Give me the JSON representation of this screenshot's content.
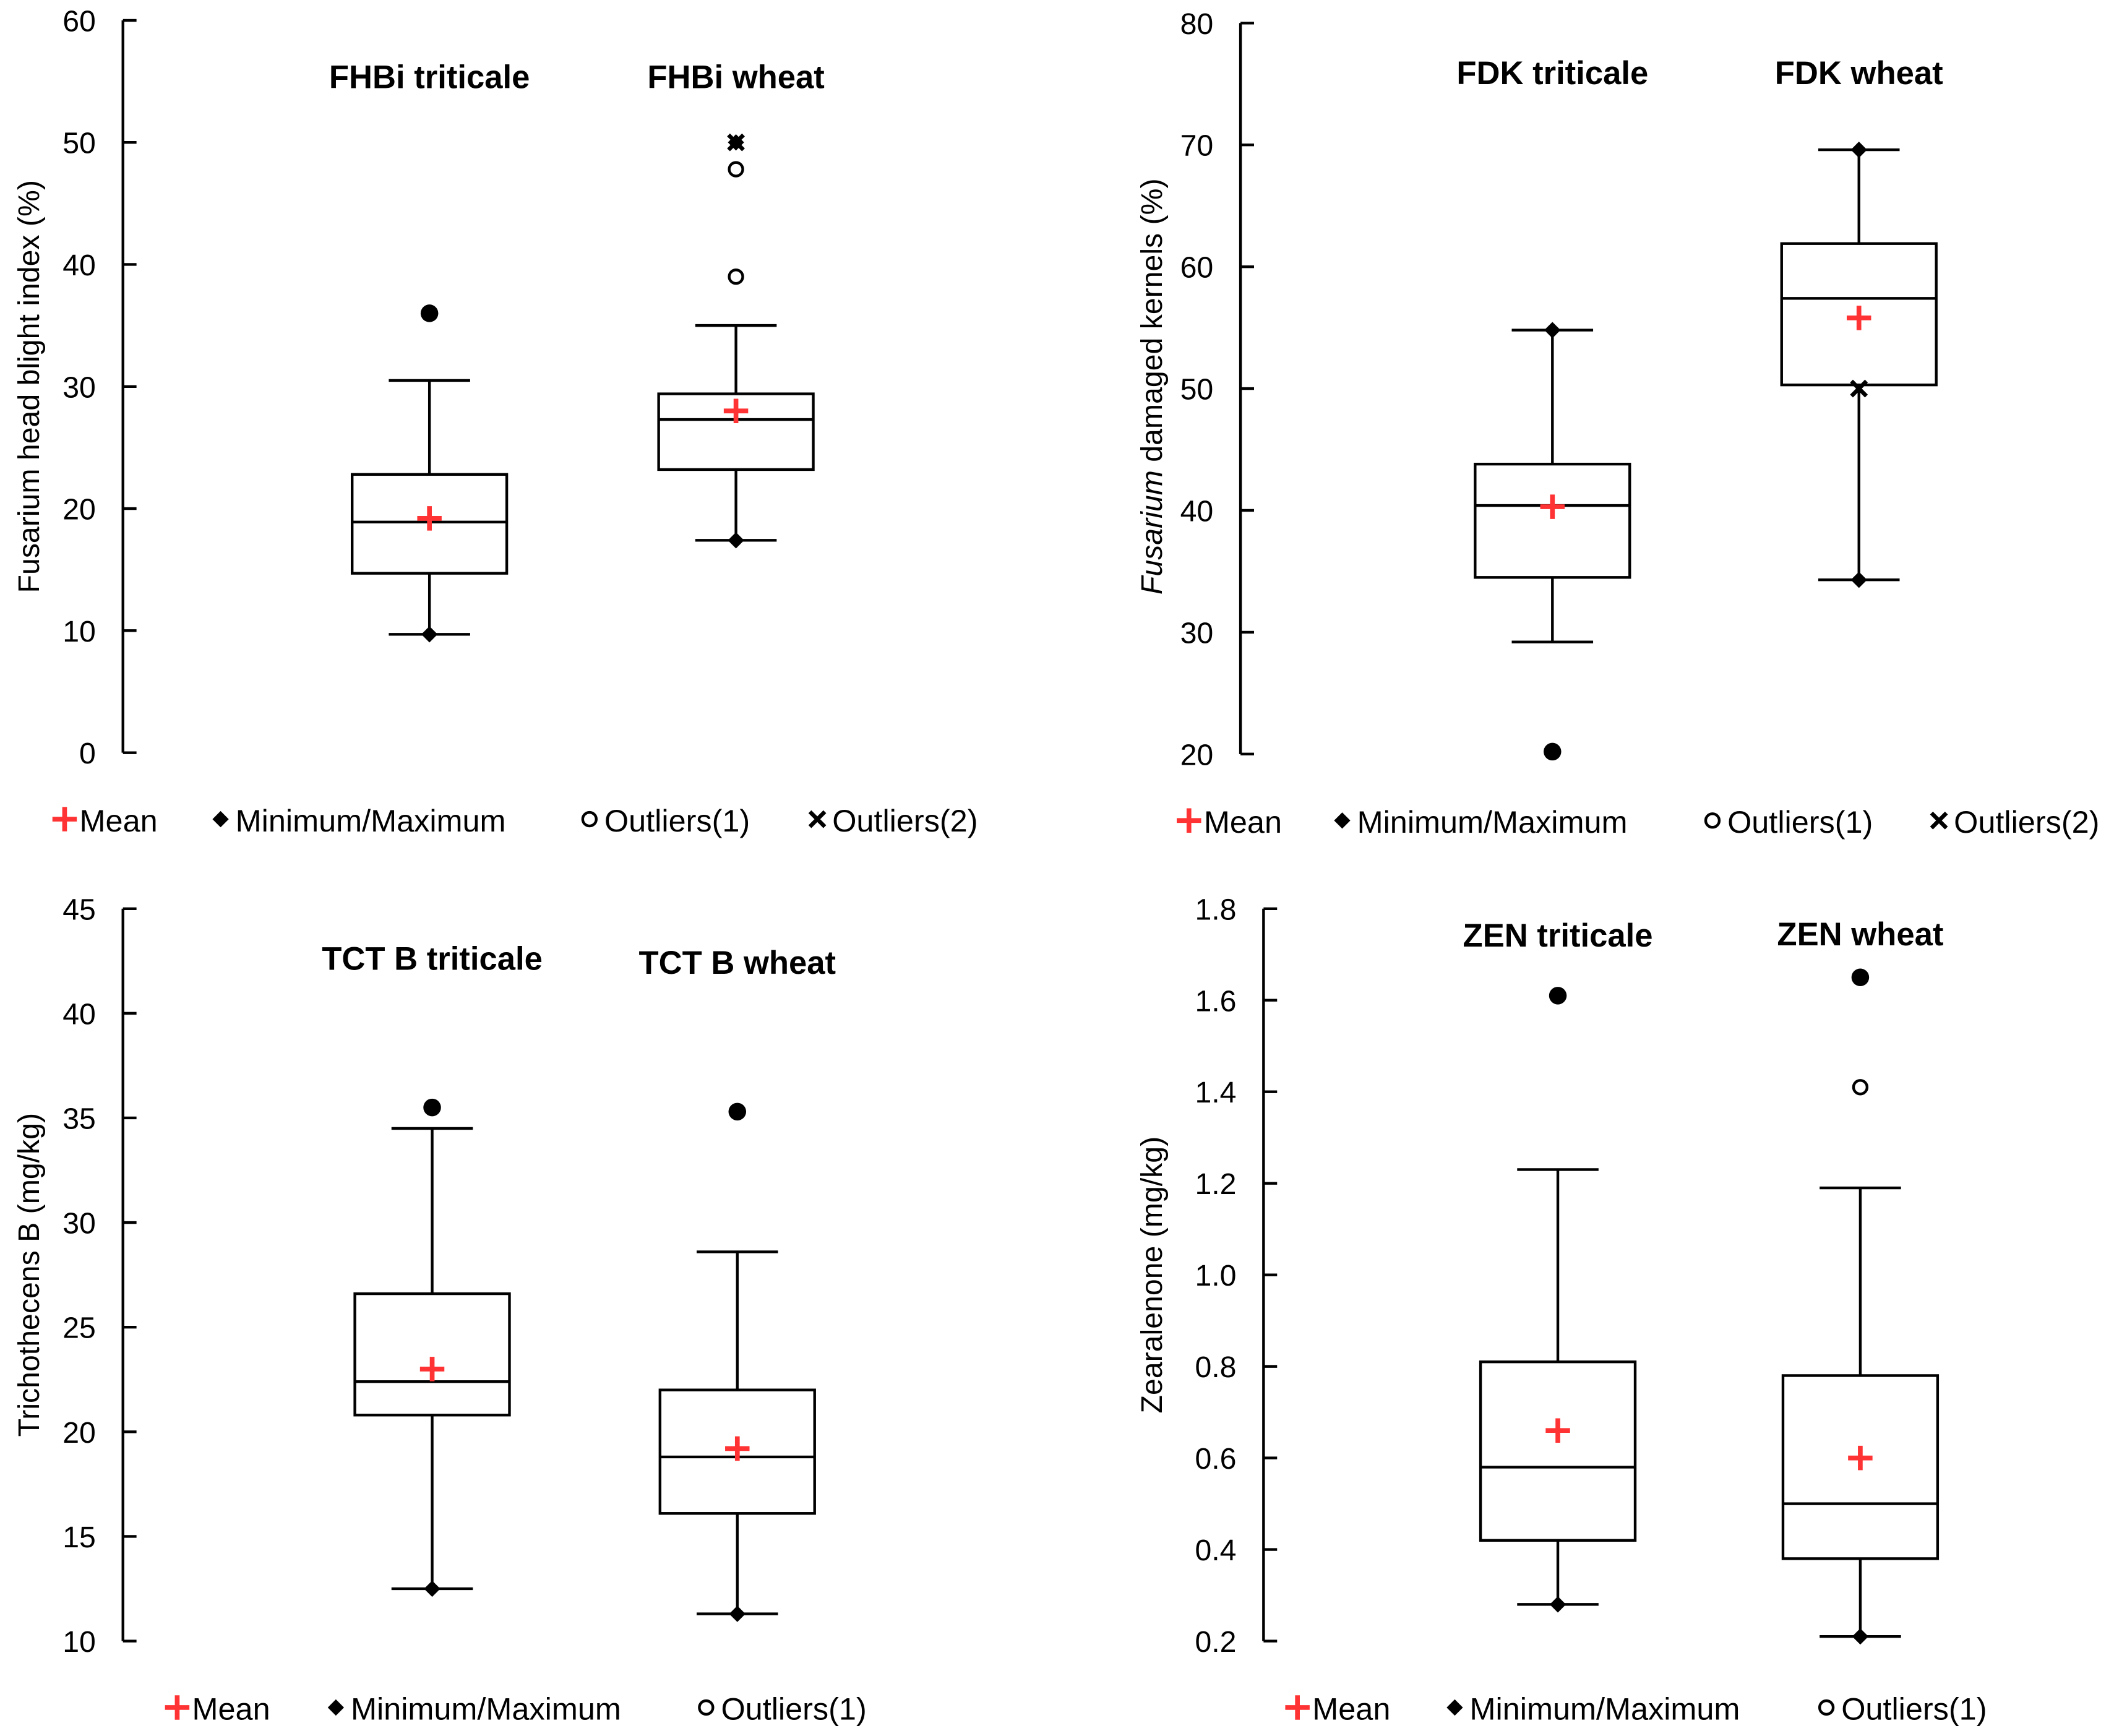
{
  "colors": {
    "mean": "#ff3333",
    "ink": "#000000"
  },
  "chart_data": [
    {
      "type": "box",
      "ylabel_italic": "",
      "ylabel": "Fusarium head blight index (%)",
      "ylim": [
        0,
        60
      ],
      "ystep": 10,
      "tick_decimals": 0,
      "legend": [
        "Mean",
        "Minimum/Maximum",
        "Outliers(1)",
        "Outliers(2)"
      ],
      "groups": [
        {
          "title": "FHBi triticale",
          "whisker_low": 9.7,
          "q1": 14.7,
          "median": 18.9,
          "q3": 22.8,
          "whisker_high": 30.5,
          "mean": 19.2,
          "min_marker": 9.7,
          "max_marker": null,
          "filled_points": [
            36.0
          ],
          "outliers1": [],
          "outliers2": []
        },
        {
          "title": "FHBi wheat",
          "whisker_low": 17.4,
          "q1": 23.2,
          "median": 27.3,
          "q3": 29.4,
          "whisker_high": 35.0,
          "mean": 28.0,
          "min_marker": 17.4,
          "max_marker": 50.0,
          "filled_points": [],
          "outliers1": [
            39.0,
            47.8
          ],
          "outliers2": [
            50.0
          ]
        }
      ]
    },
    {
      "type": "box",
      "ylabel_italic": "Fusarium",
      "ylabel": " damaged kernels (%)",
      "ylim": [
        20,
        80
      ],
      "ystep": 10,
      "tick_decimals": 0,
      "legend": [
        "Mean",
        "Minimum/Maximum",
        "Outliers(1)",
        "Outliers(2)"
      ],
      "groups": [
        {
          "title": "FDK triticale",
          "whisker_low": 29.2,
          "q1": 34.5,
          "median": 40.4,
          "q3": 43.8,
          "whisker_high": 54.8,
          "mean": 40.3,
          "min_marker": null,
          "max_marker": 54.8,
          "filled_points": [
            20.2
          ],
          "outliers1": [],
          "outliers2": []
        },
        {
          "title": "FDK wheat",
          "whisker_low": 34.3,
          "q1": 50.3,
          "median": 57.4,
          "q3": 61.9,
          "whisker_high": 69.6,
          "mean": 55.8,
          "min_marker": 34.3,
          "max_marker": 69.6,
          "filled_points": [],
          "outliers1": [],
          "outliers2": [
            50.0
          ]
        }
      ]
    },
    {
      "type": "box",
      "ylabel_italic": "",
      "ylabel": "Trichothecens B (mg/kg)",
      "ylim": [
        10,
        45
      ],
      "ystep": 5,
      "tick_decimals": 0,
      "legend": [
        "Mean",
        "Minimum/Maximum",
        "Outliers(1)"
      ],
      "groups": [
        {
          "title": "TCT B triticale",
          "whisker_low": 12.5,
          "q1": 20.8,
          "median": 22.4,
          "q3": 26.6,
          "whisker_high": 34.5,
          "mean": 23.0,
          "min_marker": 12.5,
          "max_marker": null,
          "filled_points": [
            35.5
          ],
          "outliers1": [],
          "outliers2": []
        },
        {
          "title": "TCT B wheat",
          "whisker_low": 11.3,
          "q1": 16.1,
          "median": 18.8,
          "q3": 22.0,
          "whisker_high": 28.6,
          "mean": 19.2,
          "min_marker": 11.3,
          "max_marker": null,
          "filled_points": [
            35.3
          ],
          "outliers1": [],
          "outliers2": []
        }
      ]
    },
    {
      "type": "box",
      "ylabel_italic": "",
      "ylabel": "Zearalenone (mg/kg)",
      "ylim": [
        0.2,
        1.8
      ],
      "ystep": 0.2,
      "tick_decimals": 1,
      "legend": [
        "Mean",
        "Minimum/Maximum",
        "Outliers(1)"
      ],
      "groups": [
        {
          "title": "ZEN triticale",
          "whisker_low": 0.28,
          "q1": 0.42,
          "median": 0.58,
          "q3": 0.81,
          "whisker_high": 1.23,
          "mean": 0.66,
          "min_marker": 0.28,
          "max_marker": null,
          "filled_points": [
            1.61
          ],
          "outliers1": [],
          "outliers2": []
        },
        {
          "title": "ZEN wheat",
          "whisker_low": 0.21,
          "q1": 0.38,
          "median": 0.5,
          "q3": 0.78,
          "whisker_high": 1.19,
          "mean": 0.6,
          "min_marker": 0.21,
          "max_marker": null,
          "filled_points": [
            1.65
          ],
          "outliers1": [
            1.41
          ],
          "outliers2": []
        }
      ]
    }
  ]
}
